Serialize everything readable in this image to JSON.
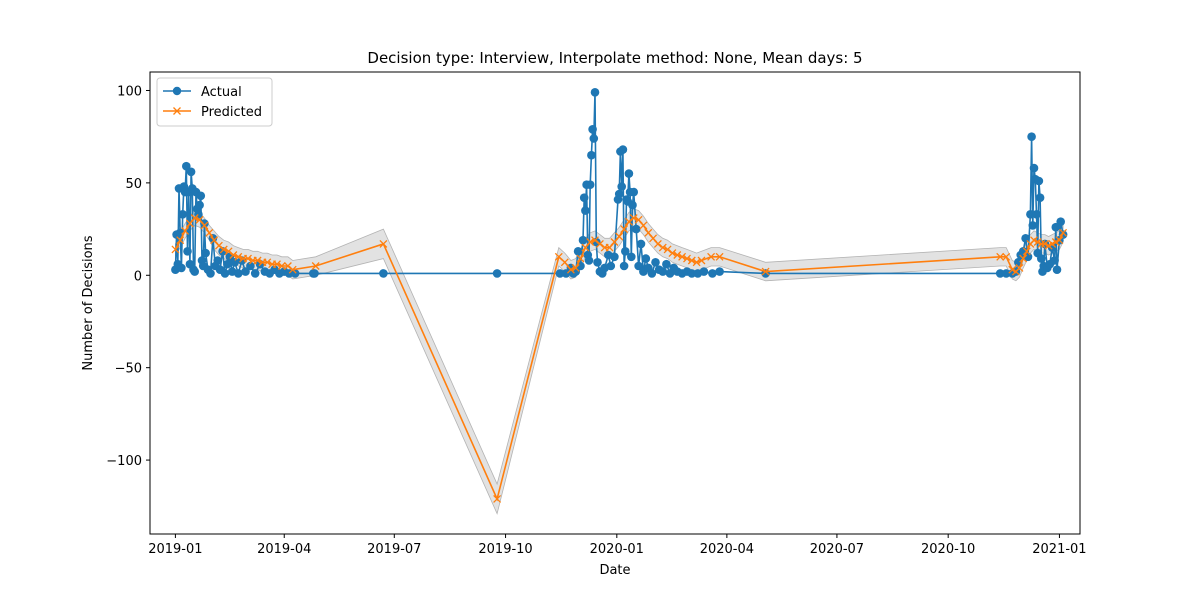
{
  "chart_data": {
    "type": "line",
    "title": "Decision type: Interview, Interpolate method: None, Mean days: 5",
    "xlabel": "Date",
    "ylabel": "Number of Decisions",
    "x_axis": "date",
    "xlim": [
      "2018-12-11",
      "2021-01-18"
    ],
    "ylim": [
      -140,
      110
    ],
    "x_ticks": [
      {
        "date": "2019-01-01",
        "label": "2019-01"
      },
      {
        "date": "2019-04-01",
        "label": "2019-04"
      },
      {
        "date": "2019-07-01",
        "label": "2019-07"
      },
      {
        "date": "2019-10-01",
        "label": "2019-10"
      },
      {
        "date": "2020-01-01",
        "label": "2020-01"
      },
      {
        "date": "2020-04-01",
        "label": "2020-04"
      },
      {
        "date": "2020-07-01",
        "label": "2020-07"
      },
      {
        "date": "2020-10-01",
        "label": "2020-10"
      },
      {
        "date": "2021-01-01",
        "label": "2021-01"
      }
    ],
    "y_ticks": [
      {
        "value": 100,
        "label": "100"
      },
      {
        "value": 50,
        "label": "50"
      },
      {
        "value": 0,
        "label": "0"
      },
      {
        "value": -50,
        "label": "−50"
      },
      {
        "value": -100,
        "label": "−100"
      }
    ],
    "grid": false,
    "legend": {
      "position": "top-left"
    },
    "series": [
      {
        "name": "Actual",
        "color": "#1f77b4",
        "marker": "circle",
        "points": [
          [
            "2019-01-01",
            3
          ],
          [
            "2019-01-02",
            22
          ],
          [
            "2019-01-03",
            6
          ],
          [
            "2019-01-04",
            47
          ],
          [
            "2019-01-05",
            23
          ],
          [
            "2019-01-06",
            4
          ],
          [
            "2019-01-07",
            33
          ],
          [
            "2019-01-08",
            48
          ],
          [
            "2019-01-09",
            45
          ],
          [
            "2019-01-10",
            59
          ],
          [
            "2019-01-11",
            13
          ],
          [
            "2019-01-12",
            45
          ],
          [
            "2019-01-13",
            6
          ],
          [
            "2019-01-14",
            56
          ],
          [
            "2019-01-15",
            47
          ],
          [
            "2019-01-16",
            3
          ],
          [
            "2019-01-17",
            2
          ],
          [
            "2019-01-18",
            45
          ],
          [
            "2019-01-19",
            36
          ],
          [
            "2019-01-20",
            33
          ],
          [
            "2019-01-21",
            38
          ],
          [
            "2019-01-22",
            43
          ],
          [
            "2019-01-23",
            8
          ],
          [
            "2019-01-24",
            5
          ],
          [
            "2019-01-25",
            28
          ],
          [
            "2019-01-26",
            12
          ],
          [
            "2019-01-28",
            3
          ],
          [
            "2019-01-30",
            1
          ],
          [
            "2019-02-01",
            20
          ],
          [
            "2019-02-03",
            5
          ],
          [
            "2019-02-05",
            8
          ],
          [
            "2019-02-07",
            3
          ],
          [
            "2019-02-09",
            13
          ],
          [
            "2019-02-11",
            1
          ],
          [
            "2019-02-13",
            6
          ],
          [
            "2019-02-15",
            10
          ],
          [
            "2019-02-17",
            2
          ],
          [
            "2019-02-19",
            7
          ],
          [
            "2019-02-22",
            1
          ],
          [
            "2019-02-25",
            8
          ],
          [
            "2019-02-28",
            2
          ],
          [
            "2019-03-04",
            5
          ],
          [
            "2019-03-08",
            1
          ],
          [
            "2019-03-12",
            6
          ],
          [
            "2019-03-16",
            2
          ],
          [
            "2019-03-20",
            1
          ],
          [
            "2019-03-24",
            3
          ],
          [
            "2019-03-28",
            1
          ],
          [
            "2019-04-01",
            2
          ],
          [
            "2019-04-05",
            1
          ],
          [
            "2019-04-10",
            1
          ],
          [
            "2019-04-25",
            1
          ],
          [
            "2019-04-26",
            1
          ],
          [
            "2019-06-22",
            1
          ],
          [
            "2019-09-24",
            1
          ],
          [
            "2019-11-15",
            1
          ],
          [
            "2019-11-20",
            1
          ],
          [
            "2019-11-24",
            4
          ],
          [
            "2019-11-26",
            1
          ],
          [
            "2019-11-28",
            2
          ],
          [
            "2019-11-30",
            13
          ],
          [
            "2019-12-02",
            5
          ],
          [
            "2019-12-04",
            19
          ],
          [
            "2019-12-05",
            42
          ],
          [
            "2019-12-06",
            35
          ],
          [
            "2019-12-07",
            49
          ],
          [
            "2019-12-08",
            11
          ],
          [
            "2019-12-09",
            8
          ],
          [
            "2019-12-10",
            49
          ],
          [
            "2019-12-11",
            65
          ],
          [
            "2019-12-12",
            79
          ],
          [
            "2019-12-13",
            74
          ],
          [
            "2019-12-14",
            99
          ],
          [
            "2019-12-15",
            18
          ],
          [
            "2019-12-16",
            7
          ],
          [
            "2019-12-18",
            2
          ],
          [
            "2019-12-20",
            1
          ],
          [
            "2019-12-22",
            4
          ],
          [
            "2019-12-25",
            11
          ],
          [
            "2019-12-27",
            5
          ],
          [
            "2019-12-30",
            10
          ],
          [
            "2020-01-02",
            41
          ],
          [
            "2020-01-03",
            44
          ],
          [
            "2020-01-04",
            67
          ],
          [
            "2020-01-05",
            48
          ],
          [
            "2020-01-06",
            68
          ],
          [
            "2020-01-07",
            5
          ],
          [
            "2020-01-08",
            13
          ],
          [
            "2020-01-09",
            41
          ],
          [
            "2020-01-10",
            40
          ],
          [
            "2020-01-11",
            55
          ],
          [
            "2020-01-12",
            45
          ],
          [
            "2020-01-13",
            10
          ],
          [
            "2020-01-14",
            38
          ],
          [
            "2020-01-15",
            45
          ],
          [
            "2020-01-17",
            25
          ],
          [
            "2020-01-19",
            5
          ],
          [
            "2020-01-21",
            17
          ],
          [
            "2020-01-23",
            2
          ],
          [
            "2020-01-25",
            9
          ],
          [
            "2020-01-27",
            4
          ],
          [
            "2020-01-30",
            1
          ],
          [
            "2020-02-02",
            7
          ],
          [
            "2020-02-05",
            3
          ],
          [
            "2020-02-08",
            2
          ],
          [
            "2020-02-11",
            6
          ],
          [
            "2020-02-14",
            1
          ],
          [
            "2020-02-17",
            4
          ],
          [
            "2020-02-20",
            2
          ],
          [
            "2020-02-24",
            1
          ],
          [
            "2020-02-28",
            2
          ],
          [
            "2020-03-03",
            1
          ],
          [
            "2020-03-08",
            1
          ],
          [
            "2020-03-13",
            2
          ],
          [
            "2020-03-20",
            1
          ],
          [
            "2020-03-26",
            2
          ],
          [
            "2020-05-03",
            1
          ],
          [
            "2020-11-13",
            1
          ],
          [
            "2020-11-18",
            1
          ],
          [
            "2020-11-23",
            1
          ],
          [
            "2020-11-26",
            2
          ],
          [
            "2020-11-28",
            7
          ],
          [
            "2020-11-30",
            11
          ],
          [
            "2020-12-02",
            13
          ],
          [
            "2020-12-04",
            20
          ],
          [
            "2020-12-06",
            10
          ],
          [
            "2020-12-08",
            33
          ],
          [
            "2020-12-09",
            75
          ],
          [
            "2020-12-10",
            27
          ],
          [
            "2020-12-11",
            58
          ],
          [
            "2020-12-12",
            52
          ],
          [
            "2020-12-13",
            33
          ],
          [
            "2020-12-14",
            12
          ],
          [
            "2020-12-15",
            51
          ],
          [
            "2020-12-16",
            42
          ],
          [
            "2020-12-17",
            9
          ],
          [
            "2020-12-18",
            2
          ],
          [
            "2020-12-19",
            5
          ],
          [
            "2020-12-20",
            17
          ],
          [
            "2020-12-22",
            4
          ],
          [
            "2020-12-24",
            6
          ],
          [
            "2020-12-26",
            15
          ],
          [
            "2020-12-28",
            8
          ],
          [
            "2020-12-29",
            26
          ],
          [
            "2020-12-30",
            3
          ],
          [
            "2021-01-01",
            19
          ],
          [
            "2021-01-02",
            29
          ],
          [
            "2021-01-04",
            22
          ]
        ]
      },
      {
        "name": "Predicted",
        "color": "#ff7f0e",
        "marker": "x",
        "band_color": "#bbbbbb",
        "points": [
          [
            "2019-01-01",
            14,
            3
          ],
          [
            "2019-01-05",
            19,
            4
          ],
          [
            "2019-01-09",
            24,
            4
          ],
          [
            "2019-01-13",
            28,
            4
          ],
          [
            "2019-01-17",
            31,
            4
          ],
          [
            "2019-01-21",
            30,
            4
          ],
          [
            "2019-01-25",
            27,
            4
          ],
          [
            "2019-01-29",
            23,
            4
          ],
          [
            "2019-02-02",
            19,
            5
          ],
          [
            "2019-02-06",
            16,
            5
          ],
          [
            "2019-02-10",
            14,
            5
          ],
          [
            "2019-02-14",
            13,
            5
          ],
          [
            "2019-02-18",
            11,
            5
          ],
          [
            "2019-02-22",
            10,
            5
          ],
          [
            "2019-02-26",
            9,
            5
          ],
          [
            "2019-03-02",
            9,
            5
          ],
          [
            "2019-03-06",
            8,
            5
          ],
          [
            "2019-03-10",
            8,
            5
          ],
          [
            "2019-03-14",
            7,
            5
          ],
          [
            "2019-03-18",
            7,
            5
          ],
          [
            "2019-03-22",
            6,
            5
          ],
          [
            "2019-03-26",
            6,
            5
          ],
          [
            "2019-03-30",
            5,
            5
          ],
          [
            "2019-04-04",
            5,
            5
          ],
          [
            "2019-04-08",
            3,
            5
          ],
          [
            "2019-04-27",
            5,
            5
          ],
          [
            "2019-06-22",
            17,
            8
          ],
          [
            "2019-09-24",
            -121,
            8
          ],
          [
            "2019-11-14",
            10,
            5
          ],
          [
            "2019-11-19",
            7,
            5
          ],
          [
            "2019-11-24",
            3,
            5
          ],
          [
            "2019-11-28",
            4,
            5
          ],
          [
            "2019-12-02",
            9,
            5
          ],
          [
            "2019-12-06",
            15,
            5
          ],
          [
            "2019-12-10",
            18,
            5
          ],
          [
            "2019-12-14",
            19,
            5
          ],
          [
            "2019-12-18",
            17,
            5
          ],
          [
            "2019-12-22",
            15,
            5
          ],
          [
            "2019-12-26",
            15,
            5
          ],
          [
            "2019-12-30",
            18,
            5
          ],
          [
            "2020-01-03",
            21,
            5
          ],
          [
            "2020-01-07",
            25,
            5
          ],
          [
            "2020-01-11",
            29,
            5
          ],
          [
            "2020-01-15",
            31,
            5
          ],
          [
            "2020-01-19",
            30,
            5
          ],
          [
            "2020-01-23",
            27,
            5
          ],
          [
            "2020-01-27",
            23,
            5
          ],
          [
            "2020-01-31",
            20,
            5
          ],
          [
            "2020-02-04",
            17,
            5
          ],
          [
            "2020-02-08",
            15,
            5
          ],
          [
            "2020-02-12",
            14,
            5
          ],
          [
            "2020-02-16",
            12,
            5
          ],
          [
            "2020-02-20",
            11,
            5
          ],
          [
            "2020-02-24",
            10,
            5
          ],
          [
            "2020-02-28",
            9,
            5
          ],
          [
            "2020-03-03",
            8,
            5
          ],
          [
            "2020-03-07",
            7,
            5
          ],
          [
            "2020-03-11",
            8,
            5
          ],
          [
            "2020-03-19",
            10,
            5
          ],
          [
            "2020-03-26",
            10,
            5
          ],
          [
            "2020-05-03",
            2,
            5
          ],
          [
            "2020-11-13",
            10,
            5
          ],
          [
            "2020-11-18",
            10,
            5
          ],
          [
            "2020-11-23",
            3,
            5
          ],
          [
            "2020-11-26",
            2,
            5
          ],
          [
            "2020-11-29",
            4,
            5
          ],
          [
            "2020-12-02",
            9,
            5
          ],
          [
            "2020-12-05",
            13,
            5
          ],
          [
            "2020-12-08",
            17,
            5
          ],
          [
            "2020-12-11",
            19,
            5
          ],
          [
            "2020-12-14",
            18,
            5
          ],
          [
            "2020-12-17",
            17,
            5
          ],
          [
            "2020-12-20",
            17,
            5
          ],
          [
            "2020-12-23",
            16,
            5
          ],
          [
            "2020-12-26",
            17,
            5
          ],
          [
            "2020-12-29",
            18,
            5
          ],
          [
            "2021-01-01",
            19,
            5
          ],
          [
            "2021-01-04",
            23,
            5
          ]
        ]
      }
    ]
  }
}
